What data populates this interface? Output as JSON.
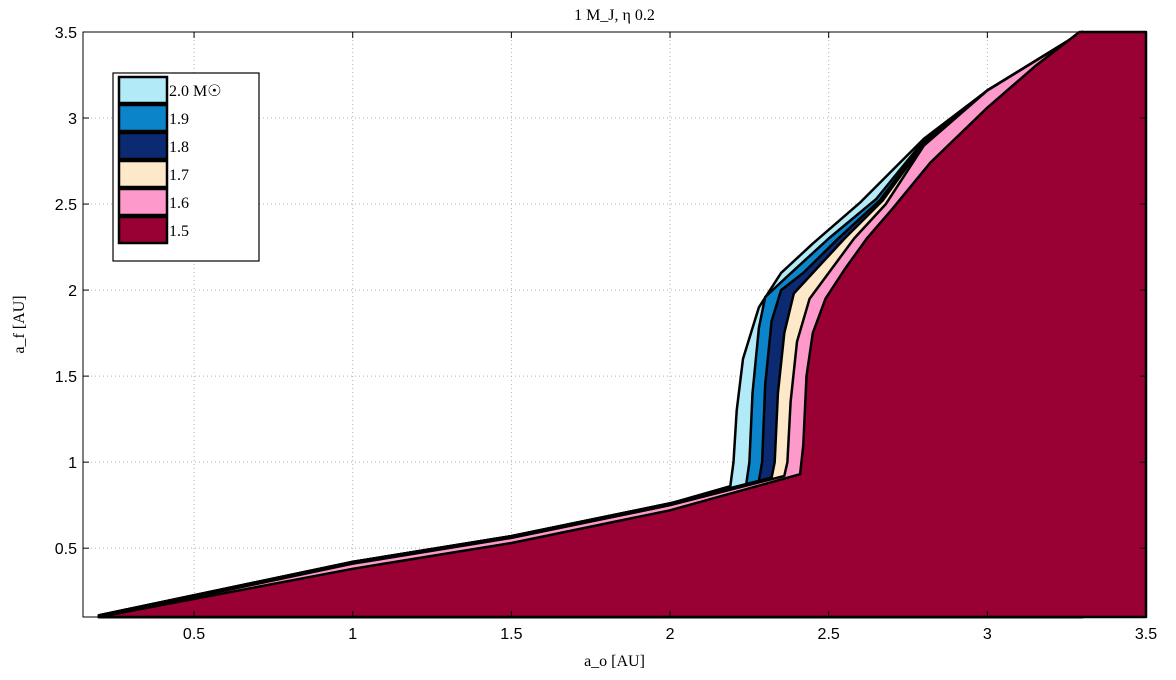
{
  "chart_data": {
    "type": "area",
    "title": "1 M_J, η   0.2",
    "xlabel": "a_o [AU]",
    "ylabel": "a_f [AU]",
    "xlim": [
      0.15,
      3.5
    ],
    "ylim": [
      0.1,
      3.5
    ],
    "xticks": [
      0.5,
      1,
      1.5,
      2,
      2.5,
      3,
      3.5
    ],
    "xtick_labels": [
      "0.5",
      "1",
      "1.5",
      "2",
      "2.5",
      "3",
      "3.5"
    ],
    "yticks": [
      0.5,
      1,
      1.5,
      2,
      2.5,
      3,
      3.5
    ],
    "ytick_labels": [
      "0.5",
      "1",
      "1.5",
      "2",
      "2.5",
      "3",
      "3.5"
    ],
    "grid": true,
    "legend_position": "top-left",
    "series": [
      {
        "name": "2.0 M☉",
        "color": "#b2ebf7",
        "points": [
          [
            0.2,
            0.11
          ],
          [
            1.0,
            0.42
          ],
          [
            1.5,
            0.57
          ],
          [
            2.0,
            0.76
          ],
          [
            2.19,
            0.86
          ],
          [
            2.2,
            1.0
          ],
          [
            2.21,
            1.3
          ],
          [
            2.23,
            1.6
          ],
          [
            2.28,
            1.9
          ],
          [
            2.35,
            2.1
          ],
          [
            2.45,
            2.27
          ],
          [
            2.6,
            2.51
          ],
          [
            2.8,
            2.88
          ],
          [
            3.0,
            3.16
          ],
          [
            3.3,
            3.5
          ]
        ]
      },
      {
        "name": "1.9",
        "color": "#0b84c9",
        "points": [
          [
            0.2,
            0.11
          ],
          [
            1.0,
            0.42
          ],
          [
            1.5,
            0.57
          ],
          [
            2.0,
            0.76
          ],
          [
            2.24,
            0.87
          ],
          [
            2.25,
            1.0
          ],
          [
            2.26,
            1.4
          ],
          [
            2.28,
            1.78
          ],
          [
            2.3,
            1.96
          ],
          [
            2.37,
            2.08
          ],
          [
            2.5,
            2.3
          ],
          [
            2.65,
            2.53
          ],
          [
            2.8,
            2.87
          ],
          [
            3.0,
            3.16
          ],
          [
            3.3,
            3.5
          ]
        ]
      },
      {
        "name": "1.8",
        "color": "#0c2a72",
        "points": [
          [
            0.2,
            0.11
          ],
          [
            1.0,
            0.42
          ],
          [
            1.5,
            0.57
          ],
          [
            2.0,
            0.76
          ],
          [
            2.28,
            0.89
          ],
          [
            2.29,
            1.0
          ],
          [
            2.3,
            1.45
          ],
          [
            2.32,
            1.82
          ],
          [
            2.35,
            2.0
          ],
          [
            2.42,
            2.1
          ],
          [
            2.53,
            2.3
          ],
          [
            2.66,
            2.52
          ],
          [
            2.8,
            2.86
          ],
          [
            3.0,
            3.16
          ],
          [
            3.3,
            3.5
          ]
        ]
      },
      {
        "name": "1.7",
        "color": "#fde9c9",
        "points": [
          [
            0.2,
            0.11
          ],
          [
            1.0,
            0.42
          ],
          [
            1.5,
            0.57
          ],
          [
            2.0,
            0.76
          ],
          [
            2.32,
            0.91
          ],
          [
            2.33,
            1.0
          ],
          [
            2.34,
            1.4
          ],
          [
            2.36,
            1.75
          ],
          [
            2.39,
            1.98
          ],
          [
            2.45,
            2.1
          ],
          [
            2.55,
            2.3
          ],
          [
            2.67,
            2.52
          ],
          [
            2.8,
            2.85
          ],
          [
            3.0,
            3.16
          ],
          [
            3.3,
            3.5
          ]
        ]
      },
      {
        "name": "1.6",
        "color": "#fd9acb",
        "points": [
          [
            0.2,
            0.1
          ],
          [
            1.0,
            0.41
          ],
          [
            1.5,
            0.56
          ],
          [
            2.0,
            0.75
          ],
          [
            2.36,
            0.92
          ],
          [
            2.37,
            1.0
          ],
          [
            2.38,
            1.35
          ],
          [
            2.4,
            1.7
          ],
          [
            2.44,
            1.95
          ],
          [
            2.5,
            2.1
          ],
          [
            2.58,
            2.3
          ],
          [
            2.68,
            2.5
          ],
          [
            2.8,
            2.84
          ],
          [
            3.0,
            3.16
          ],
          [
            3.3,
            3.5
          ]
        ]
      },
      {
        "name": "1.5",
        "color": "#990033",
        "points": [
          [
            0.2,
            0.1
          ],
          [
            1.0,
            0.38
          ],
          [
            1.5,
            0.53
          ],
          [
            2.0,
            0.72
          ],
          [
            2.41,
            0.93
          ],
          [
            2.42,
            1.1
          ],
          [
            2.43,
            1.5
          ],
          [
            2.45,
            1.75
          ],
          [
            2.49,
            1.95
          ],
          [
            2.55,
            2.12
          ],
          [
            2.62,
            2.3
          ],
          [
            2.7,
            2.47
          ],
          [
            2.82,
            2.74
          ],
          [
            3.0,
            3.06
          ],
          [
            3.15,
            3.3
          ],
          [
            3.29,
            3.5
          ],
          [
            3.5,
            3.5
          ]
        ]
      }
    ]
  }
}
